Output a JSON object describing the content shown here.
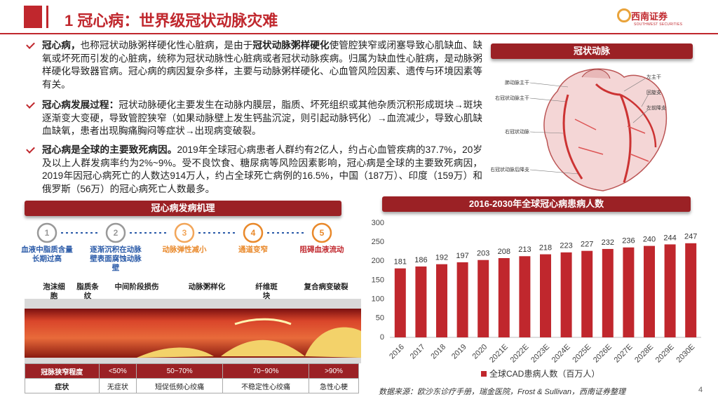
{
  "header": {
    "title": "1 冠心病：世界级冠状动脉灾难",
    "logo": "西南证券",
    "logo_sub": "SOUTHWEST SECURITIES"
  },
  "bullets": [
    {
      "segments": [
        {
          "text": "冠心病，",
          "bold": true
        },
        {
          "text": "也称冠状动脉粥样硬化性心脏病，是由于",
          "bold": false
        },
        {
          "text": "冠状动脉粥样硬化",
          "bold": true
        },
        {
          "text": "使管腔狭窄或闭塞导致心肌缺血、缺氧或坏死而引发的心脏病，统称为冠状动脉性心脏病或者冠状动脉疾病。归属为缺血性心脏病，是动脉粥样硬化导致器官病。冠心病的病因复杂多样，主要与动脉粥样硬化、心血管风险因素、遗传与环境因素等有关。",
          "bold": false
        }
      ]
    },
    {
      "segments": [
        {
          "text": "冠心病发展过程：",
          "bold": true
        },
        {
          "text": "冠状动脉硬化主要发生在动脉内膜层，脂质、坏死组织或其他杂质沉积形成斑块→斑块逐渐变大变硬，导致管腔狭窄（如果动脉壁上发生钙盐沉淀，则引起动脉钙化）→血流减少，导致心肌缺血缺氧，患者出现胸痛胸闷等症状→出现病变破裂。",
          "bold": false
        }
      ]
    },
    {
      "segments": [
        {
          "text": "冠心病是全球的主要致死病因。",
          "bold": true
        },
        {
          "text": "2019年全球冠心病患者人群约有2亿人，约占心血管疾病的37.7%，20岁及以上人群发病率约为2%~9%。受不良饮食、糖尿病等风险因素影响，冠心病是全球的主要致死病因，2019年因冠心病死亡的人数达914万人，约占全球死亡病例的16.5%，中国（187万）、印度（159万）和俄罗斯（56万）的冠心病死亡人数最多。",
          "bold": false
        }
      ]
    }
  ],
  "heart": {
    "title": "冠状动脉",
    "labels_left": [
      "肺动脉主干",
      "右冠状动脉主干",
      "右冠状动脉",
      "右冠状动脉后降支"
    ],
    "labels_right": [
      "左主干",
      "回旋支",
      "左前降支"
    ]
  },
  "mechanism": {
    "title": "冠心病发病机理",
    "steps": [
      {
        "number": "1",
        "text": "血液中脂质含量长期过高"
      },
      {
        "number": "2",
        "text": "逐渐沉积在动脉壁表面腐蚀动脉壁"
      },
      {
        "number": "3",
        "text": "动脉弹性减小"
      },
      {
        "number": "4",
        "text": "通道变窄"
      },
      {
        "number": "5",
        "text": "阻碍血液流动"
      }
    ],
    "stages": [
      "泡沫细胞",
      "脂质条纹",
      "中间阶段损伤",
      "动脉粥样化",
      "纤维斑块",
      "复合病变破裂"
    ]
  },
  "table": {
    "rows": [
      [
        "冠脉狭窄程度",
        "<50%",
        "50~70%",
        "70~90%",
        ">90%"
      ],
      [
        "症状",
        "无症状",
        "短促低频心绞痛",
        "不稳定性心绞痛",
        "急性心梗"
      ]
    ]
  },
  "chart_data": {
    "type": "bar",
    "title": "2016-2030年全球冠心病患病人数",
    "categories": [
      "2016",
      "2017",
      "2018",
      "2019",
      "2020",
      "2021E",
      "2022E",
      "2023E",
      "2024E",
      "2025E",
      "2026E",
      "2027E",
      "2028E",
      "2029E",
      "2030E"
    ],
    "series": [
      {
        "name": "全球CAD患病人数（百万人）",
        "color": "#c0272d",
        "values": [
          181,
          186,
          192,
          197,
          203,
          208,
          213,
          218,
          223,
          227,
          232,
          236,
          240,
          244,
          247
        ]
      }
    ],
    "ylim": [
      0,
      300
    ],
    "yticks": [
      0,
      50,
      100,
      150,
      200,
      250,
      300
    ],
    "grid": false
  },
  "source": "数据来源：欧沙东诊疗手册，瑞金医院，Frost & Sullivan，西南证券整理",
  "page_number": "4"
}
